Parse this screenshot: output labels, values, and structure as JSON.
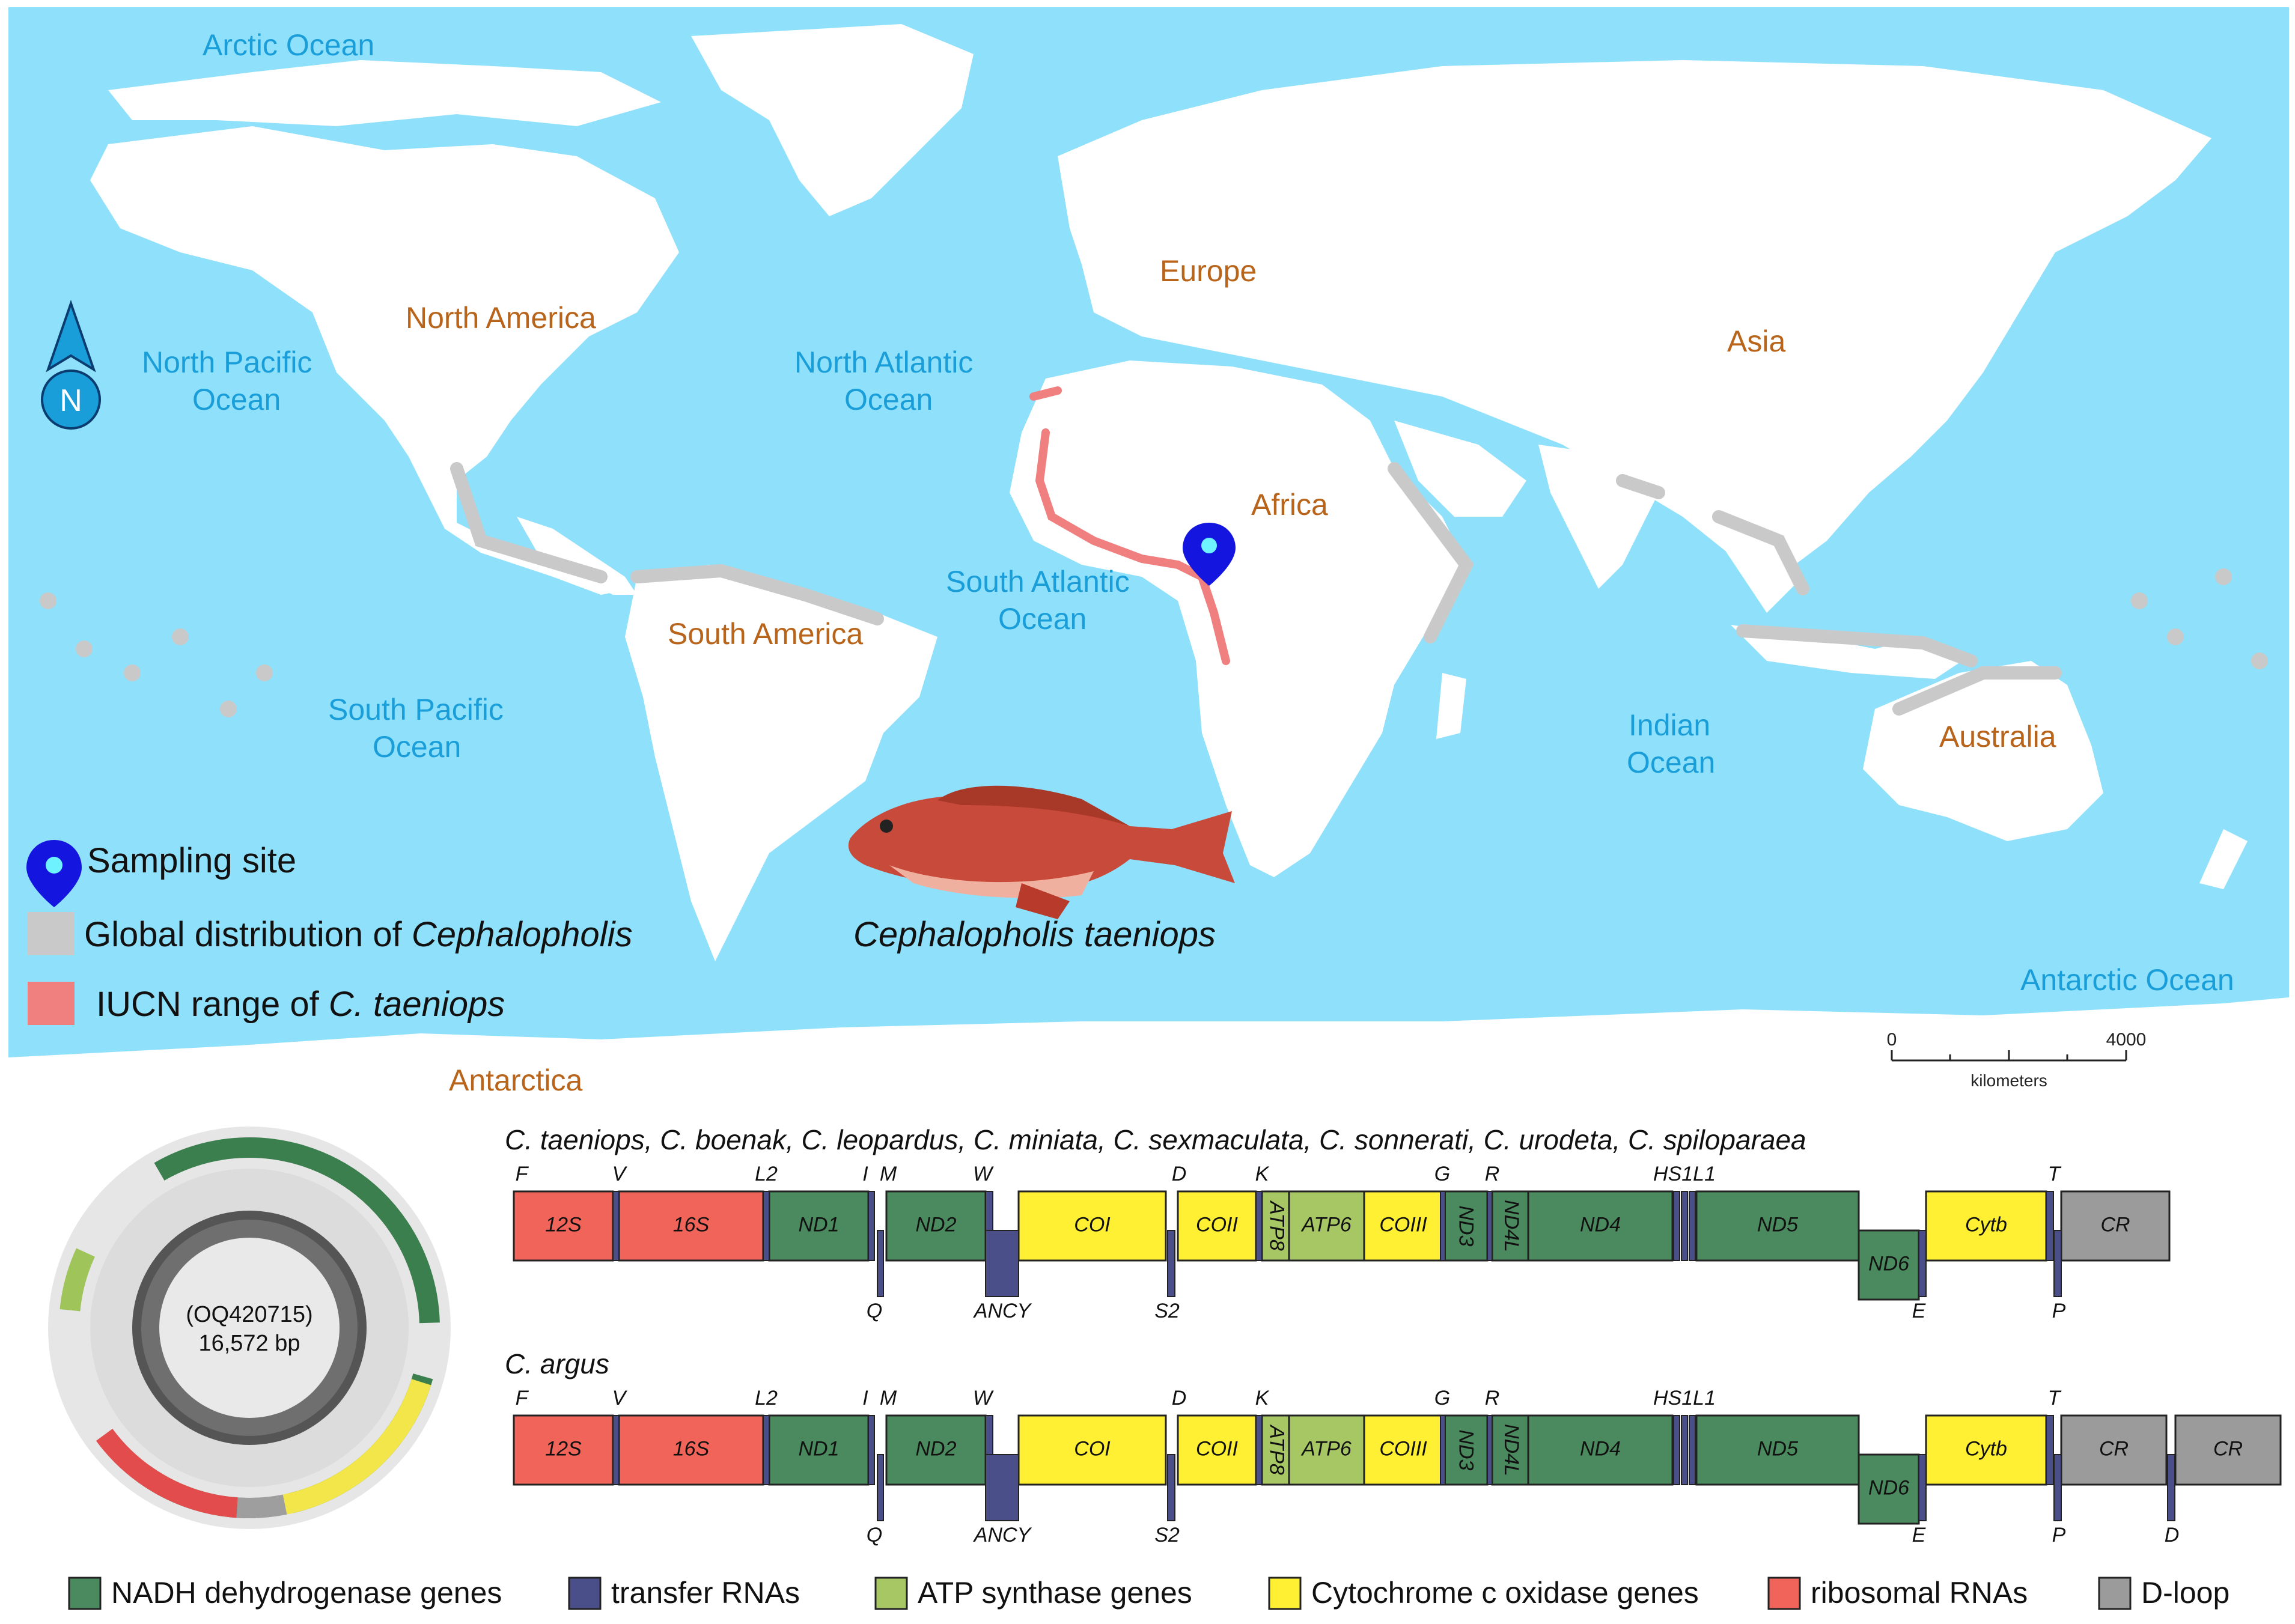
{
  "map": {
    "oceans": [
      "Arctic Ocean",
      "North Pacific",
      "Ocean",
      "North Atlantic",
      "Ocean",
      "South Atlantic",
      "Ocean",
      "South Pacific",
      "Ocean",
      "Indian",
      "Ocean",
      "Antarctic Ocean"
    ],
    "continents": [
      "North America",
      "Europe",
      "Asia",
      "Africa",
      "South America",
      "Australia",
      "Antarctica"
    ],
    "north_letter": "N",
    "legend": {
      "sampling": "Sampling site",
      "global_prefix": "Global distribution of ",
      "global_italic": "Cephalopholis",
      "iucn_prefix": "IUCN range of ",
      "iucn_italic": "C. taeniops"
    },
    "species_caption": "Cephalopholis taeniops",
    "scale": {
      "zero": "0",
      "max": "4000",
      "unit": "kilometers"
    },
    "colors": {
      "ocean": "#8fe0fa",
      "land": "#ffffff",
      "genus_range": "#c9c9c9",
      "iucn_range": "#f08080",
      "pin": "#1515e0"
    }
  },
  "circle_map": {
    "accession": "(OQ420715)",
    "length": "16,572 bp"
  },
  "gene_maps": [
    {
      "species": "C. taeniops, C. boenak, C. leopardus, C. miniata, C. sexmaculata, C. sonnerati, C. urodeta, C. spiloparaea",
      "top_labels": [
        "F",
        "V",
        "L2",
        "I",
        "M",
        "W",
        "D",
        "K",
        "G",
        "R",
        "HS1L1",
        "T"
      ],
      "bottom_labels": [
        "Q",
        "ANCY",
        "S2",
        "E",
        "P"
      ],
      "genes": [
        "12S",
        "16S",
        "ND1",
        "ND2",
        "COI",
        "COII",
        "ATP8",
        "ATP6",
        "COIII",
        "ND3",
        "ND4L",
        "ND4",
        "ND5",
        "ND6",
        "Cytb",
        "CR"
      ]
    },
    {
      "species": "C. argus",
      "top_labels": [
        "F",
        "V",
        "L2",
        "I",
        "M",
        "W",
        "D",
        "K",
        "G",
        "R",
        "HS1L1",
        "T"
      ],
      "bottom_labels": [
        "Q",
        "ANCY",
        "S2",
        "E",
        "P",
        "D"
      ],
      "genes": [
        "12S",
        "16S",
        "ND1",
        "ND2",
        "COI",
        "COII",
        "ATP8",
        "ATP6",
        "COIII",
        "ND3",
        "ND4L",
        "ND4",
        "ND5",
        "ND6",
        "Cytb",
        "CR",
        "CR"
      ]
    }
  ],
  "legend_bottom": [
    {
      "label": "NADH dehydrogenase genes",
      "color": "#4a8a5e"
    },
    {
      "label": "transfer RNAs",
      "color": "#4a4f8a"
    },
    {
      "label": "ATP synthase genes",
      "color": "#a7c765"
    },
    {
      "label": "Cytochrome c oxidase genes",
      "color": "#fff033"
    },
    {
      "label": "ribosomal RNAs",
      "color": "#f0645a"
    },
    {
      "label": "D-loop",
      "color": "#9b9b9b"
    }
  ]
}
